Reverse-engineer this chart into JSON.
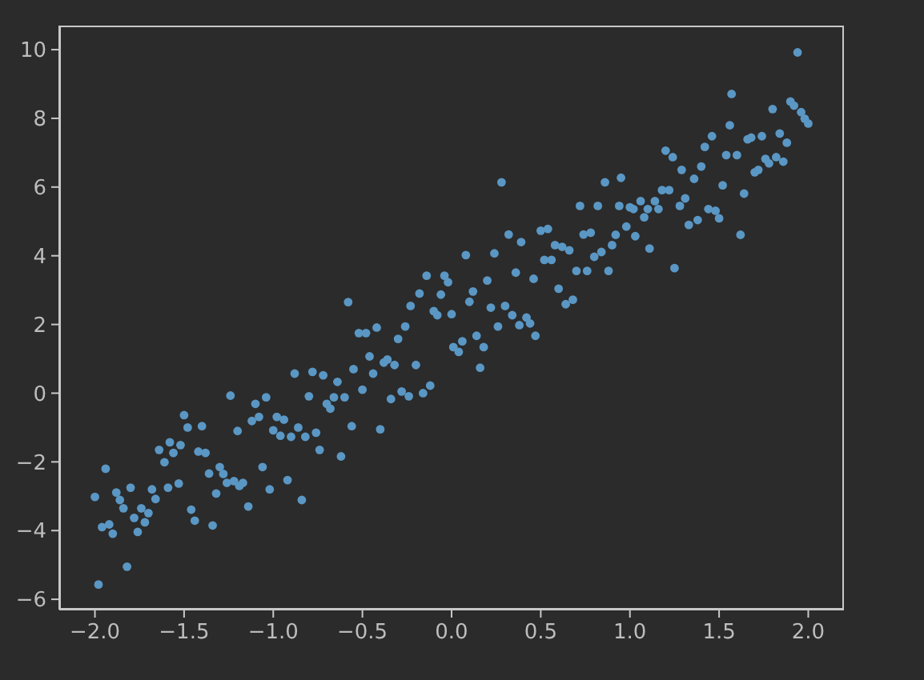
{
  "chart_data": {
    "type": "scatter",
    "marker": "circle",
    "x": [
      -2.0,
      -1.98,
      -1.96,
      -1.94,
      -1.92,
      -1.9,
      -1.88,
      -1.86,
      -1.84,
      -1.82,
      -1.8,
      -1.78,
      -1.76,
      -1.74,
      -1.72,
      -1.7,
      -1.68,
      -1.66,
      -1.64,
      -1.61,
      -1.59,
      -1.58,
      -1.56,
      -1.53,
      -1.52,
      -1.5,
      -1.48,
      -1.46,
      -1.44,
      -1.42,
      -1.4,
      -1.38,
      -1.36,
      -1.34,
      -1.32,
      -1.3,
      -1.28,
      -1.26,
      -1.24,
      -1.22,
      -1.2,
      -1.19,
      -1.17,
      -1.14,
      -1.12,
      -1.1,
      -1.08,
      -1.06,
      -1.04,
      -1.02,
      -1.0,
      -0.98,
      -0.96,
      -0.94,
      -0.92,
      -0.9,
      -0.88,
      -0.86,
      -0.84,
      -0.82,
      -0.8,
      -0.78,
      -0.76,
      -0.74,
      -0.72,
      -0.7,
      -0.68,
      -0.66,
      -0.64,
      -0.62,
      -0.6,
      -0.58,
      -0.56,
      -0.55,
      -0.52,
      -0.5,
      -0.48,
      -0.46,
      -0.44,
      -0.42,
      -0.4,
      -0.38,
      -0.36,
      -0.34,
      -0.32,
      -0.3,
      -0.28,
      -0.26,
      -0.24,
      -0.23,
      -0.2,
      -0.18,
      -0.16,
      -0.14,
      -0.12,
      -0.1,
      -0.08,
      -0.06,
      -0.04,
      -0.02,
      0.0,
      0.01,
      0.04,
      0.06,
      0.08,
      0.1,
      0.12,
      0.14,
      0.16,
      0.18,
      0.2,
      0.22,
      0.24,
      0.26,
      0.28,
      0.3,
      0.32,
      0.34,
      0.36,
      0.38,
      0.39,
      0.42,
      0.44,
      0.46,
      0.47,
      0.5,
      0.52,
      0.54,
      0.56,
      0.58,
      0.6,
      0.62,
      0.64,
      0.66,
      0.68,
      0.7,
      0.72,
      0.74,
      0.76,
      0.78,
      0.8,
      0.82,
      0.84,
      0.86,
      0.88,
      0.9,
      0.92,
      0.94,
      0.95,
      0.98,
      1.0,
      1.02,
      1.03,
      1.06,
      1.08,
      1.1,
      1.11,
      1.14,
      1.16,
      1.18,
      1.2,
      1.22,
      1.24,
      1.25,
      1.28,
      1.29,
      1.31,
      1.33,
      1.36,
      1.38,
      1.4,
      1.42,
      1.44,
      1.46,
      1.48,
      1.5,
      1.52,
      1.54,
      1.56,
      1.57,
      1.6,
      1.62,
      1.64,
      1.66,
      1.68,
      1.7,
      1.72,
      1.74,
      1.76,
      1.78,
      1.8,
      1.82,
      1.84,
      1.86,
      1.88,
      1.9,
      1.92,
      1.94,
      1.96,
      1.98,
      2.0
    ],
    "series": [
      {
        "color": "#5a97c4",
        "values": [
          -3.02,
          -5.57,
          -3.9,
          -2.2,
          -3.82,
          -4.09,
          -2.89,
          -3.11,
          -3.35,
          -5.05,
          -2.75,
          -3.63,
          -4.04,
          -3.35,
          -3.76,
          -3.49,
          -2.8,
          -3.08,
          -1.65,
          -2.01,
          -2.75,
          -1.43,
          -1.74,
          -2.63,
          -1.51,
          -0.64,
          -1.0,
          -3.39,
          -3.71,
          -1.7,
          -0.96,
          -1.74,
          -2.34,
          -3.85,
          -2.92,
          -2.15,
          -2.35,
          -2.61,
          -0.07,
          -2.56,
          -1.1,
          -2.7,
          -2.61,
          -3.3,
          -0.81,
          -0.31,
          -0.69,
          -2.15,
          -0.12,
          -2.8,
          -1.08,
          -0.69,
          -1.24,
          -0.77,
          -2.53,
          -1.27,
          0.57,
          -1.0,
          -3.11,
          -1.27,
          -0.09,
          0.62,
          -1.15,
          -1.65,
          0.52,
          -0.31,
          -0.45,
          -0.12,
          0.33,
          -1.84,
          -0.12,
          2.65,
          -0.96,
          0.7,
          1.75,
          0.1,
          1.75,
          1.07,
          0.57,
          1.91,
          -1.05,
          0.89,
          0.98,
          -0.17,
          0.82,
          1.58,
          0.05,
          1.94,
          -0.09,
          2.54,
          0.82,
          2.9,
          0.0,
          3.42,
          0.22,
          2.39,
          2.27,
          2.87,
          3.42,
          3.23,
          2.3,
          1.34,
          1.2,
          1.51,
          4.02,
          2.66,
          2.96,
          1.67,
          0.74,
          1.34,
          3.28,
          2.49,
          4.07,
          1.94,
          6.14,
          2.54,
          4.62,
          2.27,
          3.51,
          1.98,
          4.4,
          2.2,
          2.03,
          3.33,
          1.67,
          4.73,
          3.88,
          4.78,
          3.88,
          4.31,
          3.04,
          4.26,
          2.59,
          4.16,
          2.72,
          3.56,
          5.45,
          4.62,
          3.56,
          4.67,
          3.97,
          5.45,
          4.11,
          6.14,
          3.56,
          4.31,
          4.61,
          5.45,
          6.27,
          4.85,
          5.41,
          5.36,
          4.57,
          5.59,
          5.12,
          5.36,
          4.21,
          5.59,
          5.36,
          5.91,
          7.06,
          5.91,
          6.87,
          3.64,
          5.45,
          6.5,
          5.67,
          4.9,
          6.24,
          5.04,
          6.6,
          7.17,
          5.36,
          7.48,
          5.31,
          5.09,
          6.05,
          6.93,
          7.8,
          8.71,
          6.93,
          4.61,
          5.81,
          7.39,
          7.44,
          6.43,
          6.5,
          7.48,
          6.82,
          6.69,
          8.27,
          6.87,
          7.56,
          6.74,
          7.29,
          8.49,
          8.37,
          9.92,
          8.18,
          7.99,
          7.85
        ]
      }
    ],
    "xlim": [
      -2.2,
      2.2
    ],
    "xticks": [
      {
        "value": -2,
        "label": "−2.0"
      },
      {
        "value": -1.5,
        "label": "−1.5"
      },
      {
        "value": -1,
        "label": "−1.0"
      },
      {
        "value": -0.5,
        "label": "−0.5"
      },
      {
        "value": 0,
        "label": "0.0"
      },
      {
        "value": 0.5,
        "label": "0.5"
      },
      {
        "value": 1,
        "label": "1.0"
      },
      {
        "value": 1.5,
        "label": "1.5"
      },
      {
        "value": 2,
        "label": "2.0"
      }
    ],
    "ylim": [
      -6.3,
      10.7
    ],
    "yticks": [
      {
        "value": -6,
        "label": "−6"
      },
      {
        "value": -4,
        "label": "−4"
      },
      {
        "value": -2,
        "label": "−2"
      },
      0,
      2,
      4,
      6,
      8,
      10
    ]
  }
}
